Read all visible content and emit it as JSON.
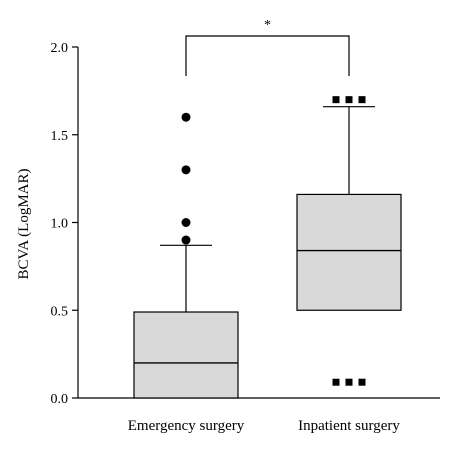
{
  "chart_data": {
    "type": "box",
    "ylabel": "BCVA (LogMAR)",
    "ylim": [
      0,
      2.0
    ],
    "yticks": [
      0.0,
      0.5,
      1.0,
      1.5,
      2.0
    ],
    "ytick_labels": [
      "0.0",
      "0.5",
      "1.0",
      "1.5",
      "2.0"
    ],
    "categories": [
      "Emergency surgery",
      "Inpatient surgery"
    ],
    "boxes": [
      {
        "category": "Emergency surgery",
        "whisker_low": 0.0,
        "q1": 0.0,
        "median": 0.2,
        "q3": 0.49,
        "whisker_high": 0.87,
        "outliers": [
          0.9,
          1.0,
          1.3,
          1.6
        ],
        "outlier_marker": "circle"
      },
      {
        "category": "Inpatient surgery",
        "whisker_low": 0.5,
        "q1": 0.5,
        "median": 0.84,
        "q3": 1.16,
        "whisker_high": 1.66,
        "outliers": [
          0.09,
          1.7
        ],
        "outlier_marker": "square-triplet"
      }
    ],
    "significance": {
      "between": [
        "Emergency surgery",
        "Inpatient surgery"
      ],
      "label": "*"
    },
    "colors": {
      "box_fill": "#d9d9d9",
      "stroke": "#000000"
    }
  }
}
